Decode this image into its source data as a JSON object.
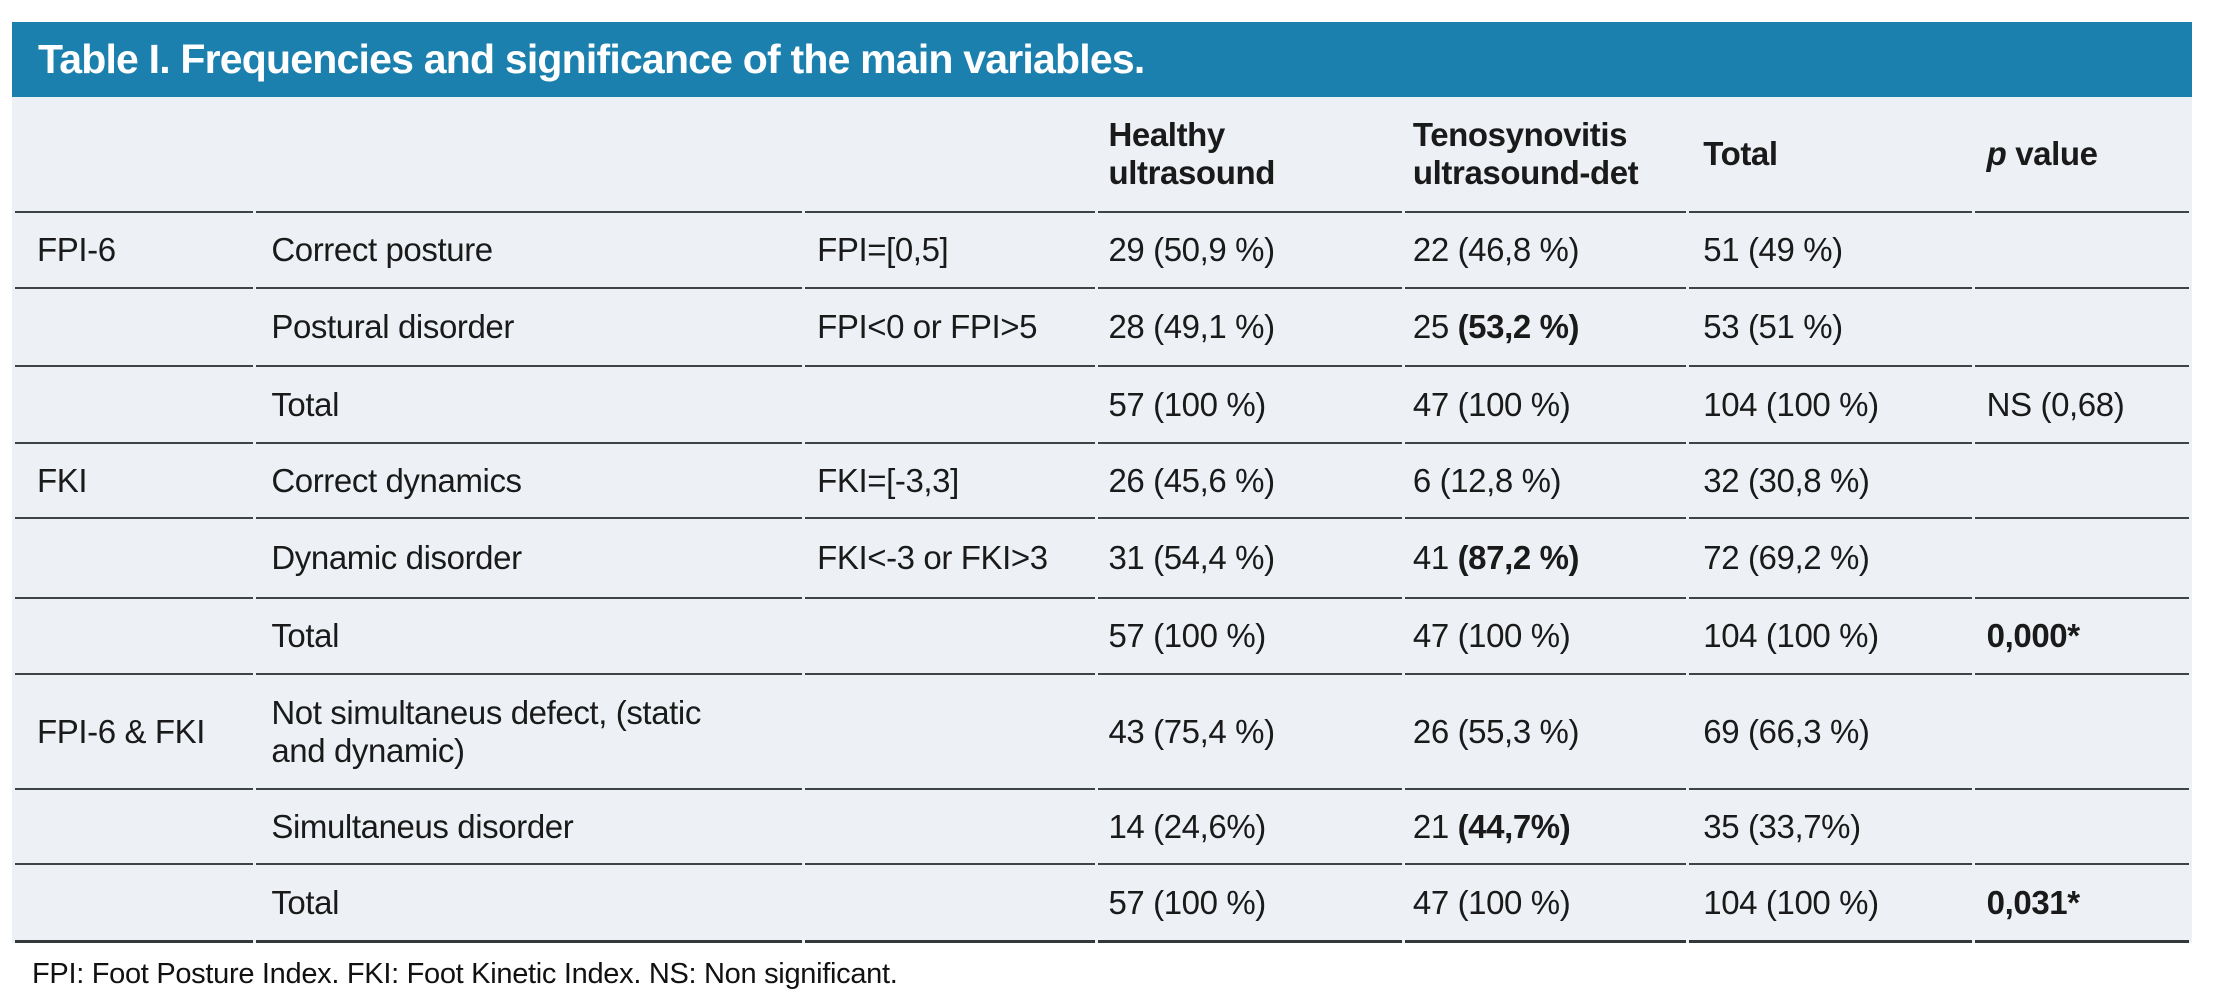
{
  "title": "Table I. Frequencies and significance of the main variables.",
  "colors": {
    "title_bar_bg": "#1b80ad",
    "title_text": "#ffffff",
    "row_bg": "#edf1f6",
    "separator_line": "#3e4347",
    "text": "#1a1a1a"
  },
  "table": {
    "headers": {
      "variable": "",
      "category": "",
      "criterion": "",
      "healthy": "Healthy\nultrasound",
      "tenosynovitis": "Tenosynovitis\nultrasound-det",
      "total": "Total",
      "p_italic": "p",
      "p_rest": " value"
    },
    "rows": [
      {
        "group": "FPI-6",
        "label": "Correct posture",
        "criterion": "FPI=[0,5]",
        "healthy": "29 (50,9 %)",
        "teno": "22 (46,8 %)",
        "total": "51 (49 %)",
        "p": ""
      },
      {
        "group": "",
        "label": "Postural disorder",
        "criterion": "FPI<0 or FPI>5",
        "healthy": "28 (49,1 %)",
        "teno_pre": "25 ",
        "teno_bold": "(53,2 %)",
        "total": "53 (51 %)",
        "p": ""
      },
      {
        "group": "",
        "label": "Total",
        "criterion": "",
        "healthy": "57 (100 %)",
        "teno": "47 (100 %)",
        "total": "104 (100 %)",
        "p": "NS (0,68)"
      },
      {
        "group": "FKI",
        "label": "Correct dynamics",
        "criterion": "FKI=[-3,3]",
        "healthy": "26 (45,6 %)",
        "teno": "6 (12,8 %)",
        "total": "32 (30,8 %)",
        "p": ""
      },
      {
        "group": "",
        "label": "Dynamic disorder",
        "criterion": "FKI<-3 or FKI>3",
        "healthy": "31 (54,4 %)",
        "teno_pre": "41 ",
        "teno_bold": "(87,2 %)",
        "total": "72 (69,2 %)",
        "p": ""
      },
      {
        "group": "",
        "label": "Total",
        "criterion": "",
        "healthy": "57 (100 %)",
        "teno": "47 (100 %)",
        "total": "104 (100 %)",
        "p_bold": "0,000*"
      },
      {
        "group": "FPI-6 & FKI",
        "label": "Not simultaneus defect, (static\nand dynamic)",
        "criterion": "",
        "healthy": "43 (75,4 %)",
        "teno": "26 (55,3 %)",
        "total": "69 (66,3 %)",
        "p": ""
      },
      {
        "group": "",
        "label": "Simultaneus disorder",
        "criterion": "",
        "healthy": "14 (24,6%)",
        "teno_pre": "21 ",
        "teno_bold": "(44,7%)",
        "total": "35 (33,7%)",
        "p": ""
      },
      {
        "group": "",
        "label": "Total",
        "criterion": "",
        "healthy": "57 (100 %)",
        "teno": "47 (100 %)",
        "total": "104 (100 %)",
        "p_bold": "0,031*"
      }
    ]
  },
  "footnote": "FPI: Foot Posture Index. FKI: Foot Kinetic Index. NS: Non significant."
}
